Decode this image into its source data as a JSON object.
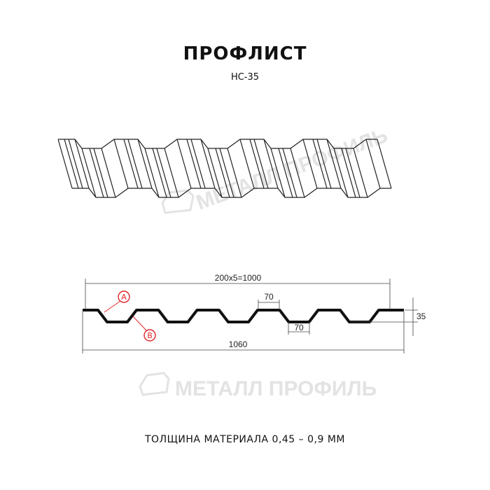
{
  "title": "ПРОФЛИСТ",
  "subtitle": "НС-35",
  "footer": "ТОЛЩИНА МАТЕРИАЛА 0,45 – 0,9 ММ",
  "watermark": "МЕТАЛЛ ПРОФИЛЬ",
  "dimensions": {
    "pitch_total": "200x5=1000",
    "top_width": "70",
    "bottom_width": "70",
    "height": "35",
    "total_width": "1060"
  },
  "callouts": {
    "a": "A",
    "b": "B"
  },
  "colors": {
    "line": "#111111",
    "callout": "#e0252b",
    "watermark": "#e3e3e3"
  }
}
